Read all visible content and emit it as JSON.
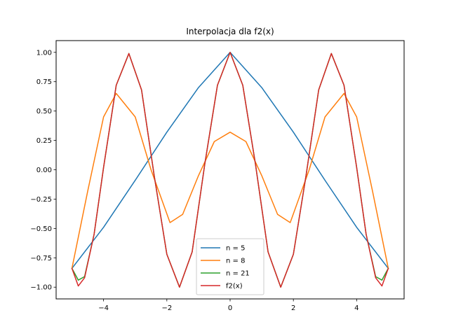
{
  "chart_data": {
    "type": "line",
    "title": "Interpolacja dla f2(x)",
    "xlabel": "",
    "ylabel": "",
    "xlim": [
      -5.5,
      5.5
    ],
    "ylim": [
      -1.1,
      1.1
    ],
    "xticks": [
      -4,
      -2,
      0,
      2,
      4
    ],
    "xtick_labels": [
      "−4",
      "−2",
      "0",
      "2",
      "4"
    ],
    "yticks": [
      -1.0,
      -0.75,
      -0.5,
      -0.25,
      0.0,
      0.25,
      0.5,
      0.75,
      1.0
    ],
    "ytick_labels": [
      "−1.00",
      "−0.75",
      "−0.50",
      "−0.25",
      "0.00",
      "0.25",
      "0.50",
      "0.75",
      "1.00"
    ],
    "grid": false,
    "legend_position": "lower-center",
    "series": [
      {
        "name": "n = 5",
        "color": "#1f77b4",
        "x": [
          -5,
          -4,
          -3,
          -2,
          -1,
          0,
          1,
          2,
          3,
          4,
          5
        ],
        "y": [
          -0.84,
          -0.49,
          -0.09,
          0.32,
          0.7,
          1.0,
          0.7,
          0.32,
          -0.09,
          -0.49,
          -0.84
        ]
      },
      {
        "name": "n = 8",
        "color": "#ff7f0e",
        "x": [
          -5,
          -4.5,
          -4,
          -3.6,
          -3,
          -2.5,
          -1.9,
          -1.5,
          -1,
          -0.5,
          0,
          0.5,
          1,
          1.5,
          1.9,
          2.5,
          3,
          3.6,
          4,
          4.5,
          5
        ],
        "y": [
          -0.84,
          -0.18,
          0.45,
          0.65,
          0.45,
          0.0,
          -0.45,
          -0.38,
          -0.05,
          0.24,
          0.32,
          0.24,
          -0.05,
          -0.38,
          -0.45,
          0.0,
          0.45,
          0.65,
          0.45,
          -0.18,
          -0.84
        ]
      },
      {
        "name": "n = 21",
        "color": "#2ca02c",
        "x": [
          -5,
          -4.8,
          -4.6,
          -4.3,
          -4.0,
          -3.6,
          -3.2,
          -2.8,
          -2.4,
          -2.0,
          -1.6,
          -1.2,
          -0.8,
          -0.4,
          0,
          0.4,
          0.8,
          1.2,
          1.6,
          2.0,
          2.4,
          2.8,
          3.2,
          3.6,
          4.0,
          4.3,
          4.6,
          4.8,
          5
        ],
        "y": [
          -0.84,
          -0.94,
          -0.91,
          -0.55,
          0.02,
          0.72,
          0.99,
          0.68,
          -0.05,
          -0.72,
          -1.0,
          -0.7,
          0.05,
          0.72,
          1.0,
          0.72,
          0.05,
          -0.7,
          -1.0,
          -0.72,
          -0.05,
          0.68,
          0.99,
          0.72,
          0.02,
          -0.55,
          -0.91,
          -0.94,
          -0.84
        ]
      },
      {
        "name": "f2(x)",
        "color": "#d62728",
        "x": [
          -5,
          -4.8,
          -4.6,
          -4.3,
          -4.0,
          -3.6,
          -3.2,
          -2.8,
          -2.4,
          -2.0,
          -1.6,
          -1.2,
          -0.8,
          -0.4,
          0,
          0.4,
          0.8,
          1.2,
          1.6,
          2.0,
          2.4,
          2.8,
          3.2,
          3.6,
          4.0,
          4.3,
          4.6,
          4.8,
          5
        ],
        "y": [
          -0.84,
          -0.99,
          -0.92,
          -0.55,
          0.02,
          0.72,
          0.99,
          0.68,
          -0.05,
          -0.72,
          -1.0,
          -0.7,
          0.05,
          0.72,
          1.0,
          0.72,
          0.05,
          -0.7,
          -1.0,
          -0.72,
          -0.05,
          0.68,
          0.99,
          0.72,
          0.02,
          -0.55,
          -0.92,
          -0.99,
          -0.84
        ]
      }
    ]
  }
}
